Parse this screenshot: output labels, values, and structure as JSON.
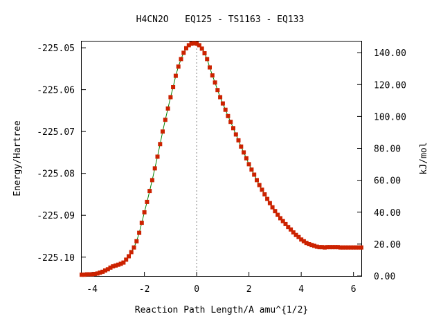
{
  "chart_data": {
    "type": "line",
    "title": "H4CN2O   EQ125 - TS1163 - EQ133",
    "xlabel": "Reaction Path Length/A amu^{1/2}",
    "ylabel": "Energy/Hartree",
    "y2label": "kJ/mol",
    "xlim": [
      -4.4,
      6.3
    ],
    "ylim": [
      -225.1045,
      -225.0485
    ],
    "y2lim": [
      0.0,
      147.0
    ],
    "x_ticks": [
      "-4",
      "-2",
      "0",
      "2",
      "4",
      "6"
    ],
    "x_tick_values": [
      -4,
      -2,
      0,
      2,
      4,
      6
    ],
    "y_ticks": [
      "-225.05",
      "-225.06",
      "-225.07",
      "-225.08",
      "-225.09",
      "-225.10"
    ],
    "y_tick_values": [
      -225.05,
      -225.06,
      -225.07,
      -225.08,
      -225.09,
      -225.1
    ],
    "y2_ticks": [
      "140.00",
      "120.00",
      "100.00",
      "80.00",
      "60.00",
      "40.00",
      "20.00",
      "0.00"
    ],
    "y2_tick_values": [
      140,
      120,
      100,
      80,
      60,
      40,
      20,
      0
    ],
    "ts_x": 0,
    "line_color": "#008000",
    "marker_color": "#cc2200",
    "series": [
      {
        "x": [
          -4.4,
          -4.3,
          -4.2,
          -4.1,
          -4.0,
          -3.9,
          -3.8,
          -3.7,
          -3.6,
          -3.5,
          -3.4,
          -3.3,
          -3.2,
          -3.1,
          -3.0,
          -2.9,
          -2.8,
          -2.7,
          -2.6,
          -2.5,
          -2.4,
          -2.3,
          -2.2,
          -2.1,
          -2.0,
          -1.9,
          -1.8,
          -1.7,
          -1.6,
          -1.5,
          -1.4,
          -1.3,
          -1.2,
          -1.1,
          -1.0,
          -0.9,
          -0.8,
          -0.7,
          -0.6,
          -0.5,
          -0.4,
          -0.3,
          -0.2,
          -0.1,
          0.0,
          0.1,
          0.2,
          0.3,
          0.4,
          0.5,
          0.6,
          0.7,
          0.8,
          0.9,
          1.0,
          1.1,
          1.2,
          1.3,
          1.4,
          1.5,
          1.6,
          1.7,
          1.8,
          1.9,
          2.0,
          2.1,
          2.2,
          2.3,
          2.4,
          2.5,
          2.6,
          2.7,
          2.8,
          2.9,
          3.0,
          3.1,
          3.2,
          3.3,
          3.4,
          3.5,
          3.6,
          3.7,
          3.8,
          3.9,
          4.0,
          4.1,
          4.2,
          4.3,
          4.4,
          4.5,
          4.6,
          4.7,
          4.8,
          4.9,
          5.0,
          5.1,
          5.2,
          5.3,
          5.4,
          5.5,
          5.6,
          5.7,
          5.8,
          5.9,
          6.0,
          6.1,
          6.2,
          6.3
        ],
        "y": [
          -225.1042,
          -225.1042,
          -225.1041,
          -225.1041,
          -225.1041,
          -225.104,
          -225.1039,
          -225.1037,
          -225.1035,
          -225.1032,
          -225.1029,
          -225.1025,
          -225.1022,
          -225.102,
          -225.1018,
          -225.1016,
          -225.1013,
          -225.1006,
          -225.0998,
          -225.0988,
          -225.0977,
          -225.0962,
          -225.0942,
          -225.0918,
          -225.0893,
          -225.0868,
          -225.0842,
          -225.0816,
          -225.0788,
          -225.076,
          -225.073,
          -225.07,
          -225.0672,
          -225.0645,
          -225.0618,
          -225.0594,
          -225.0567,
          -225.0545,
          -225.0527,
          -225.0512,
          -225.0501,
          -225.0494,
          -225.049,
          -225.0489,
          -225.049,
          -225.0494,
          -225.0502,
          -225.0513,
          -225.0527,
          -225.0547,
          -225.0566,
          -225.0583,
          -225.0601,
          -225.0618,
          -225.0633,
          -225.0648,
          -225.0663,
          -225.0677,
          -225.0692,
          -225.0707,
          -225.0721,
          -225.0736,
          -225.075,
          -225.0764,
          -225.0778,
          -225.0791,
          -225.0803,
          -225.0816,
          -225.0828,
          -225.0839,
          -225.085,
          -225.0861,
          -225.0871,
          -225.0881,
          -225.089,
          -225.0899,
          -225.0907,
          -225.0914,
          -225.0921,
          -225.0928,
          -225.0934,
          -225.0941,
          -225.0947,
          -225.0952,
          -225.0958,
          -225.0962,
          -225.0966,
          -225.0969,
          -225.0971,
          -225.0973,
          -225.0975,
          -225.0976,
          -225.0976,
          -225.0977,
          -225.0976,
          -225.0976,
          -225.0976,
          -225.0976,
          -225.0976,
          -225.0977,
          -225.0977,
          -225.0977,
          -225.0977,
          -225.0977,
          -225.0977,
          -225.0977,
          -225.0977,
          -225.0977
        ]
      }
    ],
    "grid": false
  }
}
